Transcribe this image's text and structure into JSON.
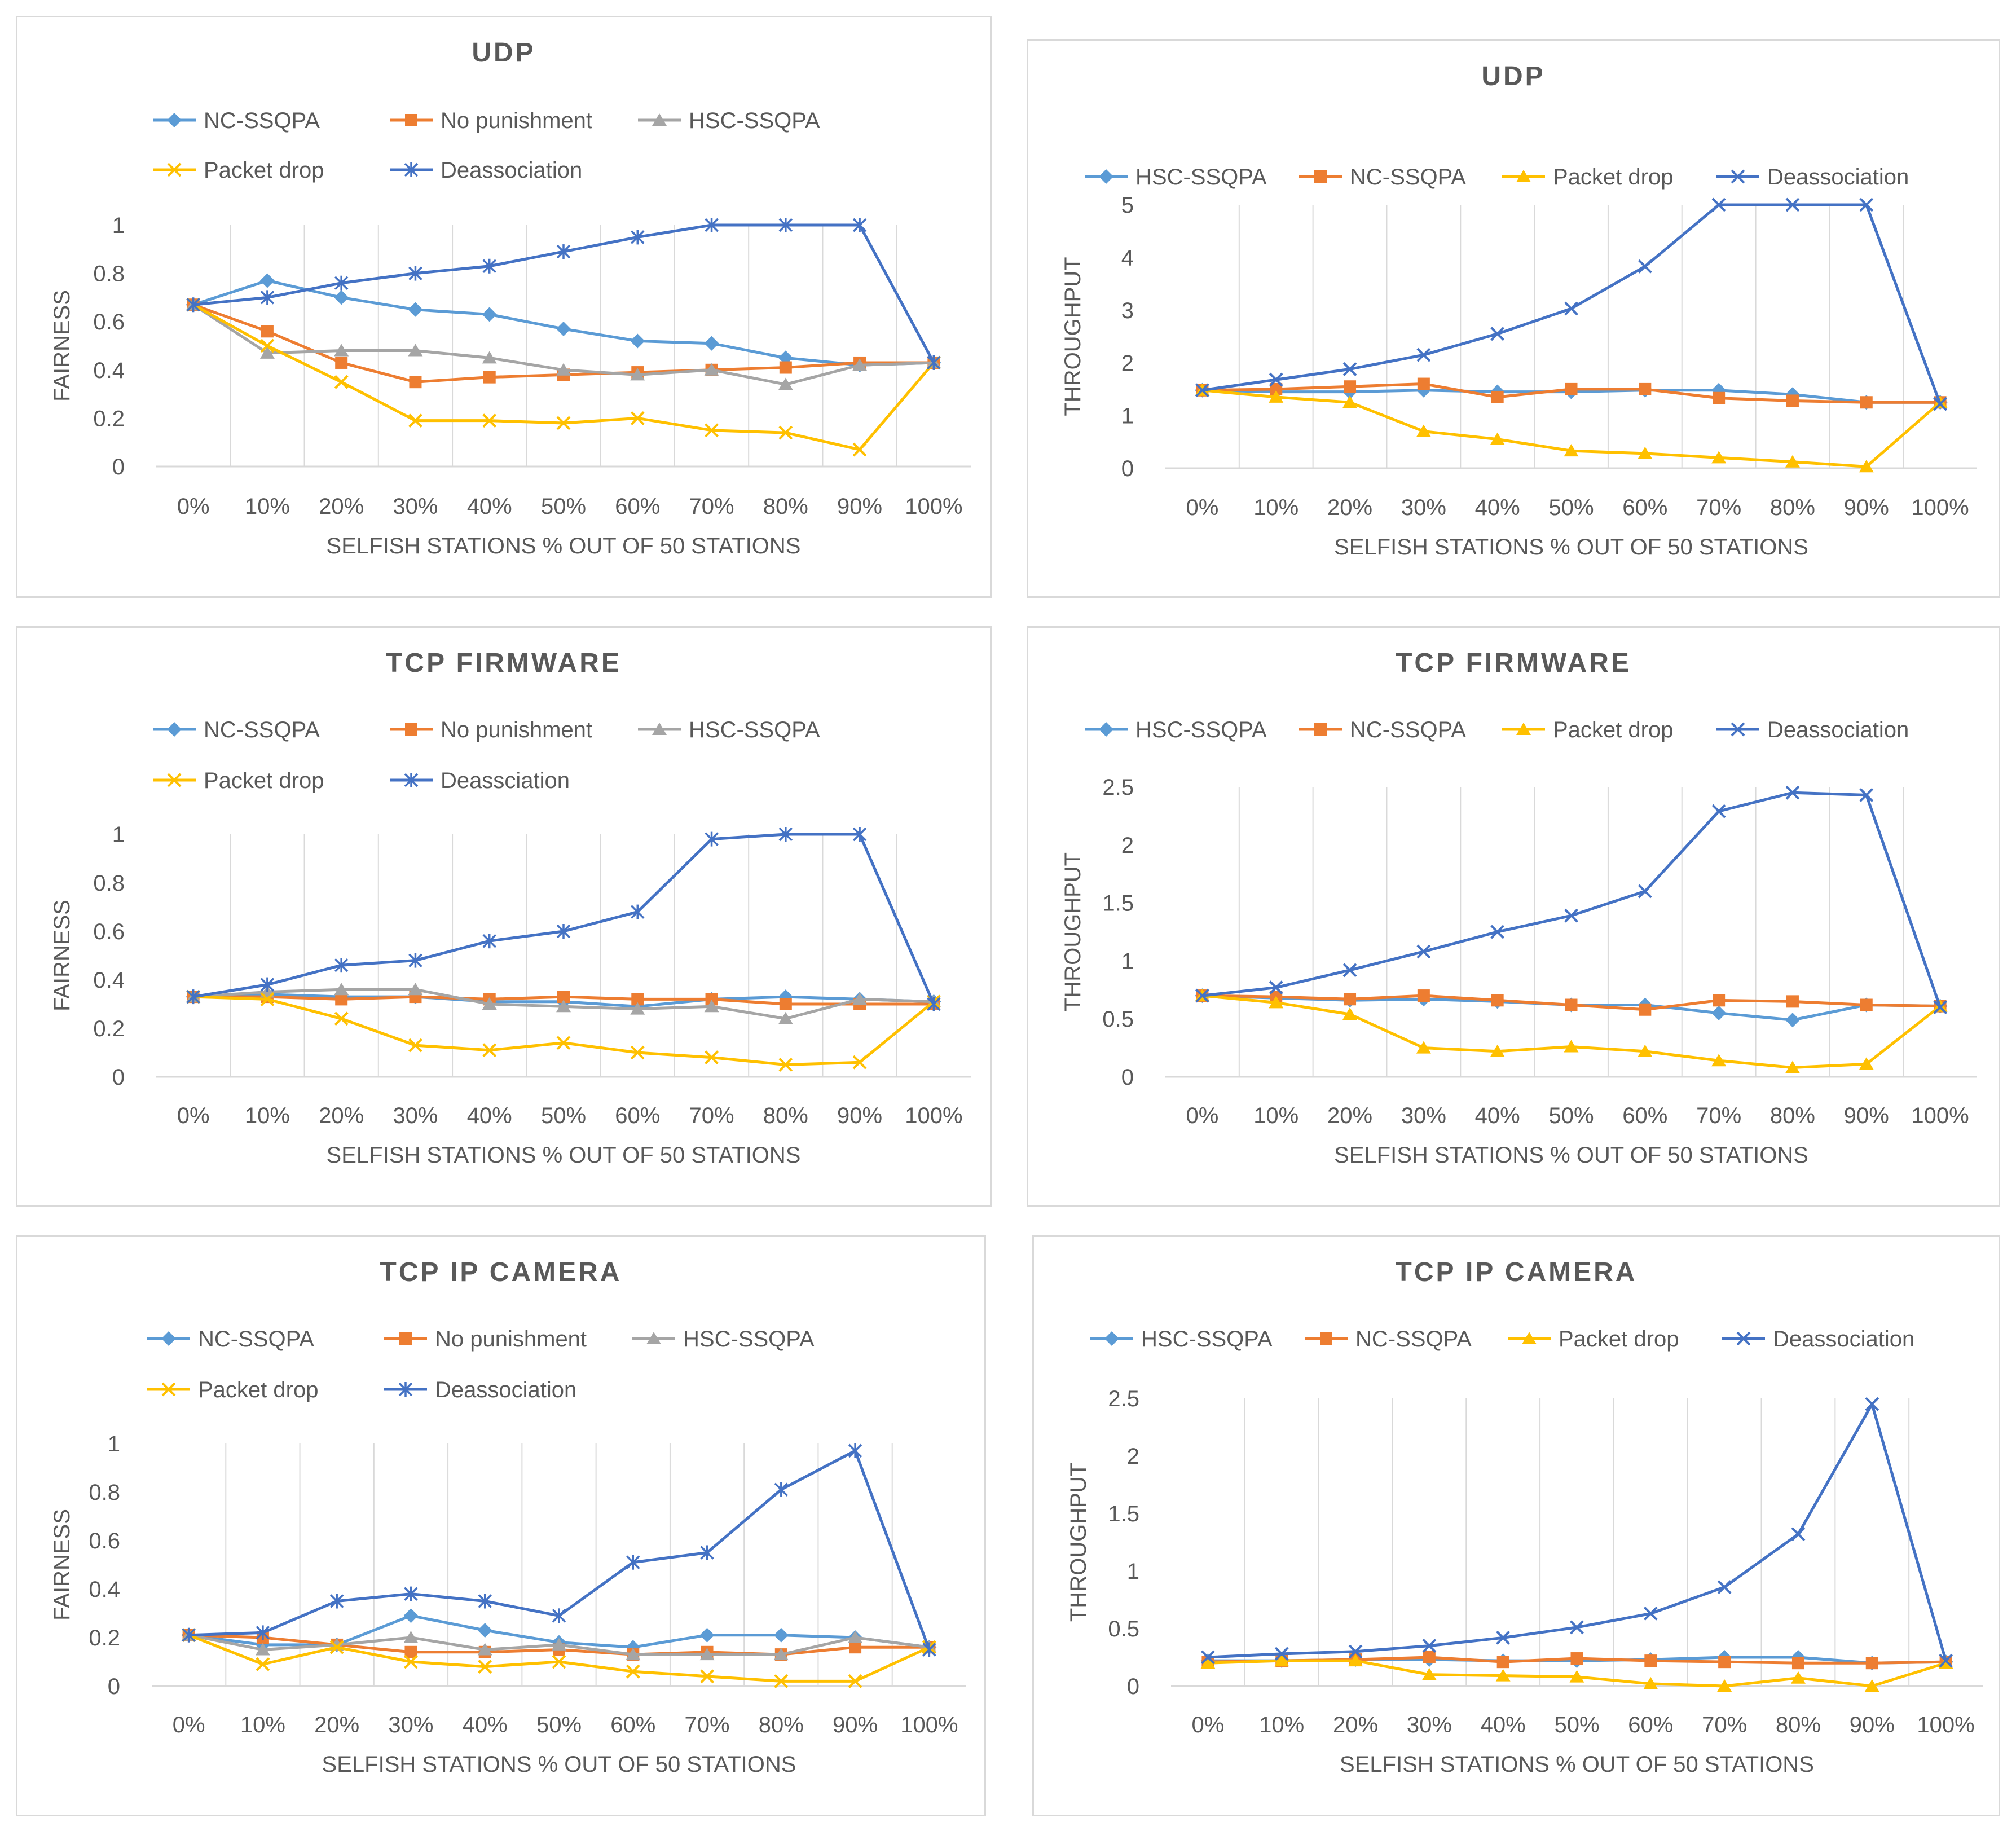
{
  "colors": {
    "nc_light_blue": "#5b9bd5",
    "orange": "#ed7d31",
    "gray": "#a5a5a5",
    "yellow": "#ffc000",
    "dark_blue": "#4472c4",
    "grid": "#d9d9d9",
    "text": "#595959"
  },
  "chart_data": [
    {
      "type": "line",
      "title": "UDP",
      "xlabel": "SELFISH STATIONS % OUT OF 50 STATIONS",
      "ylabel": "FAIRNESS",
      "categories": [
        "0%",
        "10%",
        "20%",
        "30%",
        "40%",
        "50%",
        "60%",
        "70%",
        "80%",
        "90%",
        "100%"
      ],
      "ylim": [
        0,
        1
      ],
      "yticks": [
        "0",
        "0.2",
        "0.4",
        "0.6",
        "0.8",
        "1"
      ],
      "legend_position": "top",
      "series": [
        {
          "name": "NC-SSQPA",
          "color": "#5b9bd5",
          "marker": "diamond",
          "values": [
            0.67,
            0.77,
            0.7,
            0.65,
            0.63,
            0.57,
            0.52,
            0.51,
            0.45,
            0.42,
            0.43
          ]
        },
        {
          "name": "No punishment",
          "color": "#ed7d31",
          "marker": "square",
          "values": [
            0.67,
            0.56,
            0.43,
            0.35,
            0.37,
            0.38,
            0.39,
            0.4,
            0.41,
            0.43,
            0.43
          ]
        },
        {
          "name": "HSC-SSQPA",
          "color": "#a5a5a5",
          "marker": "triangle",
          "values": [
            0.67,
            0.47,
            0.48,
            0.48,
            0.45,
            0.4,
            0.38,
            0.4,
            0.34,
            0.42,
            0.43
          ]
        },
        {
          "name": "Packet drop",
          "color": "#ffc000",
          "marker": "x",
          "values": [
            0.67,
            0.5,
            0.35,
            0.19,
            0.19,
            0.18,
            0.2,
            0.15,
            0.14,
            0.07,
            0.43
          ]
        },
        {
          "name": "Deassociation",
          "color": "#4472c4",
          "marker": "star",
          "values": [
            0.67,
            0.7,
            0.76,
            0.8,
            0.83,
            0.89,
            0.95,
            1.0,
            1.0,
            1.0,
            0.43
          ]
        }
      ]
    },
    {
      "type": "line",
      "title": "UDP",
      "xlabel": "SELFISH STATIONS % OUT OF 50 STATIONS",
      "ylabel": "THROUGHPUT",
      "categories": [
        "0%",
        "10%",
        "20%",
        "30%",
        "40%",
        "50%",
        "60%",
        "70%",
        "80%",
        "90%",
        "100%"
      ],
      "ylim": [
        0,
        5
      ],
      "yticks": [
        "0",
        "1",
        "2",
        "3",
        "4",
        "5"
      ],
      "legend_position": "top",
      "series": [
        {
          "name": "HSC-SSQPA",
          "color": "#5b9bd5",
          "marker": "diamond",
          "values": [
            1.48,
            1.45,
            1.45,
            1.48,
            1.45,
            1.45,
            1.48,
            1.48,
            1.4,
            1.25,
            1.25
          ]
        },
        {
          "name": "NC-SSQPA",
          "color": "#ed7d31",
          "marker": "square",
          "values": [
            1.48,
            1.5,
            1.55,
            1.6,
            1.35,
            1.5,
            1.5,
            1.33,
            1.28,
            1.25,
            1.25
          ]
        },
        {
          "name": "Packet drop",
          "color": "#ffc000",
          "marker": "triangle",
          "values": [
            1.48,
            1.35,
            1.25,
            0.7,
            0.55,
            0.33,
            0.28,
            0.2,
            0.12,
            0.03,
            1.25
          ]
        },
        {
          "name": "Deassociation",
          "color": "#4472c4",
          "marker": "x",
          "values": [
            1.48,
            1.68,
            1.88,
            2.15,
            2.55,
            3.03,
            3.83,
            5.0,
            5.0,
            5.0,
            1.22
          ]
        }
      ]
    },
    {
      "type": "line",
      "title": "TCP FIRMWARE",
      "xlabel": "SELFISH STATIONS % OUT OF 50 STATIONS",
      "ylabel": "FAIRNESS",
      "categories": [
        "0%",
        "10%",
        "20%",
        "30%",
        "40%",
        "50%",
        "60%",
        "70%",
        "80%",
        "90%",
        "100%"
      ],
      "ylim": [
        0,
        1
      ],
      "yticks": [
        "0",
        "0.2",
        "0.4",
        "0.6",
        "0.8",
        "1"
      ],
      "legend_position": "top",
      "series": [
        {
          "name": "NC-SSQPA",
          "color": "#5b9bd5",
          "marker": "diamond",
          "values": [
            0.33,
            0.34,
            0.33,
            0.33,
            0.31,
            0.31,
            0.29,
            0.32,
            0.33,
            0.32,
            0.31
          ]
        },
        {
          "name": "No punishment",
          "color": "#ed7d31",
          "marker": "square",
          "values": [
            0.33,
            0.33,
            0.32,
            0.33,
            0.32,
            0.33,
            0.32,
            0.32,
            0.3,
            0.3,
            0.3
          ]
        },
        {
          "name": "HSC-SSQPA",
          "color": "#a5a5a5",
          "marker": "triangle",
          "values": [
            0.33,
            0.35,
            0.36,
            0.36,
            0.3,
            0.29,
            0.28,
            0.29,
            0.24,
            0.32,
            0.31
          ]
        },
        {
          "name": "Packet drop",
          "color": "#ffc000",
          "marker": "x",
          "values": [
            0.33,
            0.32,
            0.24,
            0.13,
            0.11,
            0.14,
            0.1,
            0.08,
            0.05,
            0.06,
            0.31
          ]
        },
        {
          "name": "Deassciation",
          "color": "#4472c4",
          "marker": "star",
          "values": [
            0.33,
            0.38,
            0.46,
            0.48,
            0.56,
            0.6,
            0.68,
            0.98,
            1.0,
            1.0,
            0.3
          ]
        }
      ]
    },
    {
      "type": "line",
      "title": "TCP FIRMWARE",
      "xlabel": "SELFISH STATIONS % OUT OF 50 STATIONS",
      "ylabel": "THROUGHPUT",
      "categories": [
        "0%",
        "10%",
        "20%",
        "30%",
        "40%",
        "50%",
        "60%",
        "70%",
        "80%",
        "90%",
        "100%"
      ],
      "ylim": [
        0,
        2.5
      ],
      "yticks": [
        "0",
        "0.5",
        "1",
        "1.5",
        "2",
        "2.5"
      ],
      "legend_position": "top",
      "series": [
        {
          "name": "HSC-SSQPA",
          "color": "#5b9bd5",
          "marker": "diamond",
          "values": [
            0.7,
            0.68,
            0.66,
            0.67,
            0.65,
            0.62,
            0.62,
            0.55,
            0.49,
            0.62,
            0.61
          ]
        },
        {
          "name": "NC-SSQPA",
          "color": "#ed7d31",
          "marker": "square",
          "values": [
            0.7,
            0.69,
            0.67,
            0.7,
            0.66,
            0.62,
            0.58,
            0.66,
            0.65,
            0.62,
            0.61
          ]
        },
        {
          "name": "Packet drop",
          "color": "#ffc000",
          "marker": "triangle",
          "values": [
            0.7,
            0.64,
            0.54,
            0.25,
            0.22,
            0.26,
            0.22,
            0.14,
            0.08,
            0.11,
            0.61
          ]
        },
        {
          "name": "Deassociation",
          "color": "#4472c4",
          "marker": "x",
          "values": [
            0.7,
            0.77,
            0.92,
            1.08,
            1.25,
            1.39,
            1.6,
            2.29,
            2.45,
            2.43,
            0.6
          ]
        }
      ]
    },
    {
      "type": "line",
      "title": "TCP IP CAMERA",
      "xlabel": "SELFISH STATIONS % OUT OF 50 STATIONS",
      "ylabel": "FAIRNESS",
      "categories": [
        "0%",
        "10%",
        "20%",
        "30%",
        "40%",
        "50%",
        "60%",
        "70%",
        "80%",
        "90%",
        "100%"
      ],
      "ylim": [
        0,
        1
      ],
      "yticks": [
        "0",
        "0.2",
        "0.4",
        "0.6",
        "0.8",
        "1"
      ],
      "legend_position": "top",
      "series": [
        {
          "name": "NC-SSQPA",
          "color": "#5b9bd5",
          "marker": "diamond",
          "values": [
            0.21,
            0.17,
            0.17,
            0.29,
            0.23,
            0.18,
            0.16,
            0.21,
            0.21,
            0.2,
            0.16
          ]
        },
        {
          "name": "No punishment",
          "color": "#ed7d31",
          "marker": "square",
          "values": [
            0.21,
            0.2,
            0.17,
            0.14,
            0.14,
            0.15,
            0.13,
            0.14,
            0.13,
            0.16,
            0.16
          ]
        },
        {
          "name": "HSC-SSQPA",
          "color": "#a5a5a5",
          "marker": "triangle",
          "values": [
            0.21,
            0.15,
            0.17,
            0.2,
            0.15,
            0.17,
            0.13,
            0.13,
            0.13,
            0.2,
            0.16
          ]
        },
        {
          "name": "Packet drop",
          "color": "#ffc000",
          "marker": "x",
          "values": [
            0.21,
            0.09,
            0.16,
            0.1,
            0.08,
            0.1,
            0.06,
            0.04,
            0.02,
            0.02,
            0.16
          ]
        },
        {
          "name": "Deassociation",
          "color": "#4472c4",
          "marker": "star",
          "values": [
            0.21,
            0.22,
            0.35,
            0.38,
            0.35,
            0.29,
            0.51,
            0.55,
            0.81,
            0.97,
            0.15
          ]
        }
      ]
    },
    {
      "type": "line",
      "title": "TCP IP CAMERA",
      "xlabel": "SELFISH STATIONS % OUT OF 50 STATIONS",
      "ylabel": "THROUGHPUT",
      "categories": [
        "0%",
        "10%",
        "20%",
        "30%",
        "40%",
        "50%",
        "60%",
        "70%",
        "80%",
        "90%",
        "100%"
      ],
      "ylim": [
        0,
        2.5
      ],
      "yticks": [
        "0",
        "0.5",
        "1",
        "1.5",
        "2",
        "2.5"
      ],
      "legend_position": "top",
      "series": [
        {
          "name": "HSC-SSQPA",
          "color": "#5b9bd5",
          "marker": "diamond",
          "values": [
            0.22,
            0.22,
            0.23,
            0.23,
            0.22,
            0.22,
            0.23,
            0.25,
            0.25,
            0.2,
            0.21
          ]
        },
        {
          "name": "NC-SSQPA",
          "color": "#ed7d31",
          "marker": "square",
          "values": [
            0.21,
            0.22,
            0.23,
            0.25,
            0.21,
            0.24,
            0.22,
            0.21,
            0.2,
            0.2,
            0.21
          ]
        },
        {
          "name": "Packet drop",
          "color": "#ffc000",
          "marker": "triangle",
          "values": [
            0.2,
            0.22,
            0.22,
            0.1,
            0.09,
            0.08,
            0.02,
            0.0,
            0.07,
            0.0,
            0.2
          ]
        },
        {
          "name": "Deassociation",
          "color": "#4472c4",
          "marker": "x",
          "values": [
            0.25,
            0.28,
            0.3,
            0.35,
            0.42,
            0.51,
            0.63,
            0.86,
            1.32,
            2.45,
            0.22
          ]
        }
      ]
    }
  ]
}
